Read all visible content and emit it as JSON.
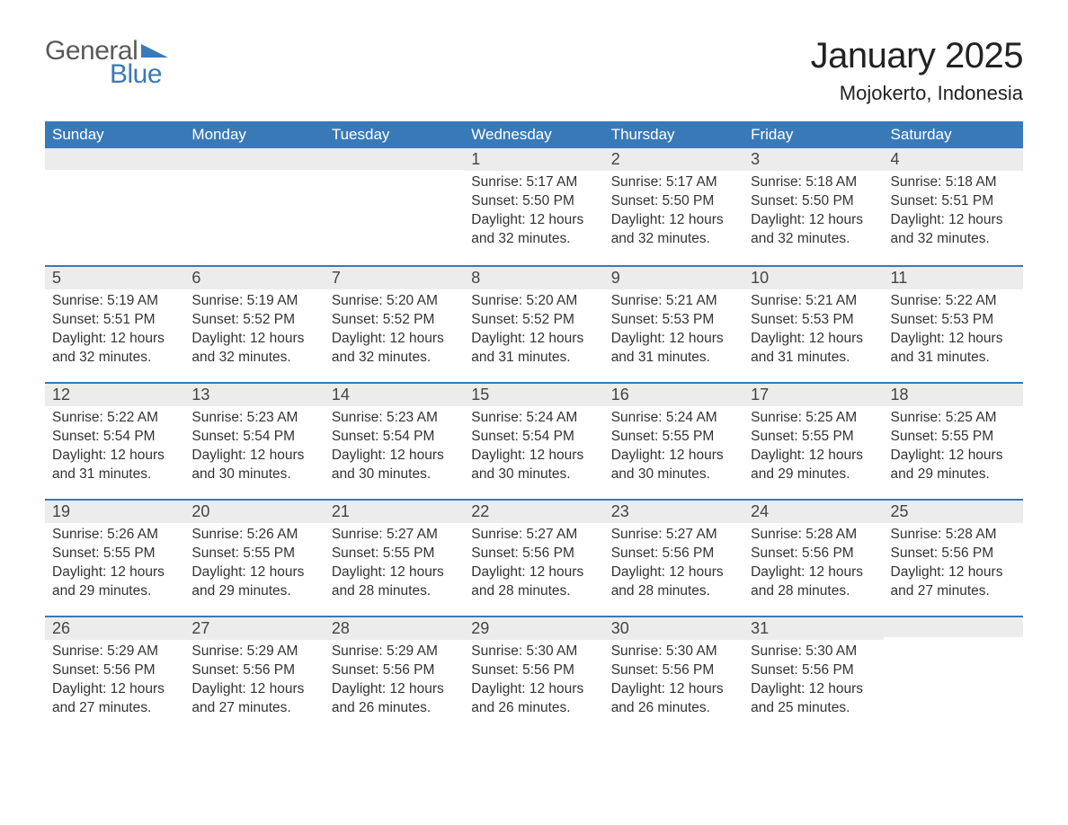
{
  "logo": {
    "text1": "General",
    "text2": "Blue",
    "flag_color": "#3a79b7",
    "text1_color": "#5a5a5a"
  },
  "title": "January 2025",
  "location": "Mojokerto, Indonesia",
  "colors": {
    "header_bg": "#3a79b7",
    "header_text": "#ffffff",
    "daynum_bg": "#ececec",
    "row_border": "#3a79b7",
    "body_text": "#333333",
    "page_bg": "#ffffff"
  },
  "fonts": {
    "title_size": 40,
    "location_size": 22,
    "dayhead_size": 17,
    "daynum_size": 18,
    "body_size": 15.5
  },
  "day_headers": [
    "Sunday",
    "Monday",
    "Tuesday",
    "Wednesday",
    "Thursday",
    "Friday",
    "Saturday"
  ],
  "weeks": [
    [
      null,
      null,
      null,
      {
        "n": "1",
        "sr": "5:17 AM",
        "ss": "5:50 PM",
        "dl": "12 hours and 32 minutes."
      },
      {
        "n": "2",
        "sr": "5:17 AM",
        "ss": "5:50 PM",
        "dl": "12 hours and 32 minutes."
      },
      {
        "n": "3",
        "sr": "5:18 AM",
        "ss": "5:50 PM",
        "dl": "12 hours and 32 minutes."
      },
      {
        "n": "4",
        "sr": "5:18 AM",
        "ss": "5:51 PM",
        "dl": "12 hours and 32 minutes."
      }
    ],
    [
      {
        "n": "5",
        "sr": "5:19 AM",
        "ss": "5:51 PM",
        "dl": "12 hours and 32 minutes."
      },
      {
        "n": "6",
        "sr": "5:19 AM",
        "ss": "5:52 PM",
        "dl": "12 hours and 32 minutes."
      },
      {
        "n": "7",
        "sr": "5:20 AM",
        "ss": "5:52 PM",
        "dl": "12 hours and 32 minutes."
      },
      {
        "n": "8",
        "sr": "5:20 AM",
        "ss": "5:52 PM",
        "dl": "12 hours and 31 minutes."
      },
      {
        "n": "9",
        "sr": "5:21 AM",
        "ss": "5:53 PM",
        "dl": "12 hours and 31 minutes."
      },
      {
        "n": "10",
        "sr": "5:21 AM",
        "ss": "5:53 PM",
        "dl": "12 hours and 31 minutes."
      },
      {
        "n": "11",
        "sr": "5:22 AM",
        "ss": "5:53 PM",
        "dl": "12 hours and 31 minutes."
      }
    ],
    [
      {
        "n": "12",
        "sr": "5:22 AM",
        "ss": "5:54 PM",
        "dl": "12 hours and 31 minutes."
      },
      {
        "n": "13",
        "sr": "5:23 AM",
        "ss": "5:54 PM",
        "dl": "12 hours and 30 minutes."
      },
      {
        "n": "14",
        "sr": "5:23 AM",
        "ss": "5:54 PM",
        "dl": "12 hours and 30 minutes."
      },
      {
        "n": "15",
        "sr": "5:24 AM",
        "ss": "5:54 PM",
        "dl": "12 hours and 30 minutes."
      },
      {
        "n": "16",
        "sr": "5:24 AM",
        "ss": "5:55 PM",
        "dl": "12 hours and 30 minutes."
      },
      {
        "n": "17",
        "sr": "5:25 AM",
        "ss": "5:55 PM",
        "dl": "12 hours and 29 minutes."
      },
      {
        "n": "18",
        "sr": "5:25 AM",
        "ss": "5:55 PM",
        "dl": "12 hours and 29 minutes."
      }
    ],
    [
      {
        "n": "19",
        "sr": "5:26 AM",
        "ss": "5:55 PM",
        "dl": "12 hours and 29 minutes."
      },
      {
        "n": "20",
        "sr": "5:26 AM",
        "ss": "5:55 PM",
        "dl": "12 hours and 29 minutes."
      },
      {
        "n": "21",
        "sr": "5:27 AM",
        "ss": "5:55 PM",
        "dl": "12 hours and 28 minutes."
      },
      {
        "n": "22",
        "sr": "5:27 AM",
        "ss": "5:56 PM",
        "dl": "12 hours and 28 minutes."
      },
      {
        "n": "23",
        "sr": "5:27 AM",
        "ss": "5:56 PM",
        "dl": "12 hours and 28 minutes."
      },
      {
        "n": "24",
        "sr": "5:28 AM",
        "ss": "5:56 PM",
        "dl": "12 hours and 28 minutes."
      },
      {
        "n": "25",
        "sr": "5:28 AM",
        "ss": "5:56 PM",
        "dl": "12 hours and 27 minutes."
      }
    ],
    [
      {
        "n": "26",
        "sr": "5:29 AM",
        "ss": "5:56 PM",
        "dl": "12 hours and 27 minutes."
      },
      {
        "n": "27",
        "sr": "5:29 AM",
        "ss": "5:56 PM",
        "dl": "12 hours and 27 minutes."
      },
      {
        "n": "28",
        "sr": "5:29 AM",
        "ss": "5:56 PM",
        "dl": "12 hours and 26 minutes."
      },
      {
        "n": "29",
        "sr": "5:30 AM",
        "ss": "5:56 PM",
        "dl": "12 hours and 26 minutes."
      },
      {
        "n": "30",
        "sr": "5:30 AM",
        "ss": "5:56 PM",
        "dl": "12 hours and 26 minutes."
      },
      {
        "n": "31",
        "sr": "5:30 AM",
        "ss": "5:56 PM",
        "dl": "12 hours and 25 minutes."
      },
      null
    ]
  ],
  "labels": {
    "sunrise": "Sunrise: ",
    "sunset": "Sunset: ",
    "daylight": "Daylight: "
  }
}
